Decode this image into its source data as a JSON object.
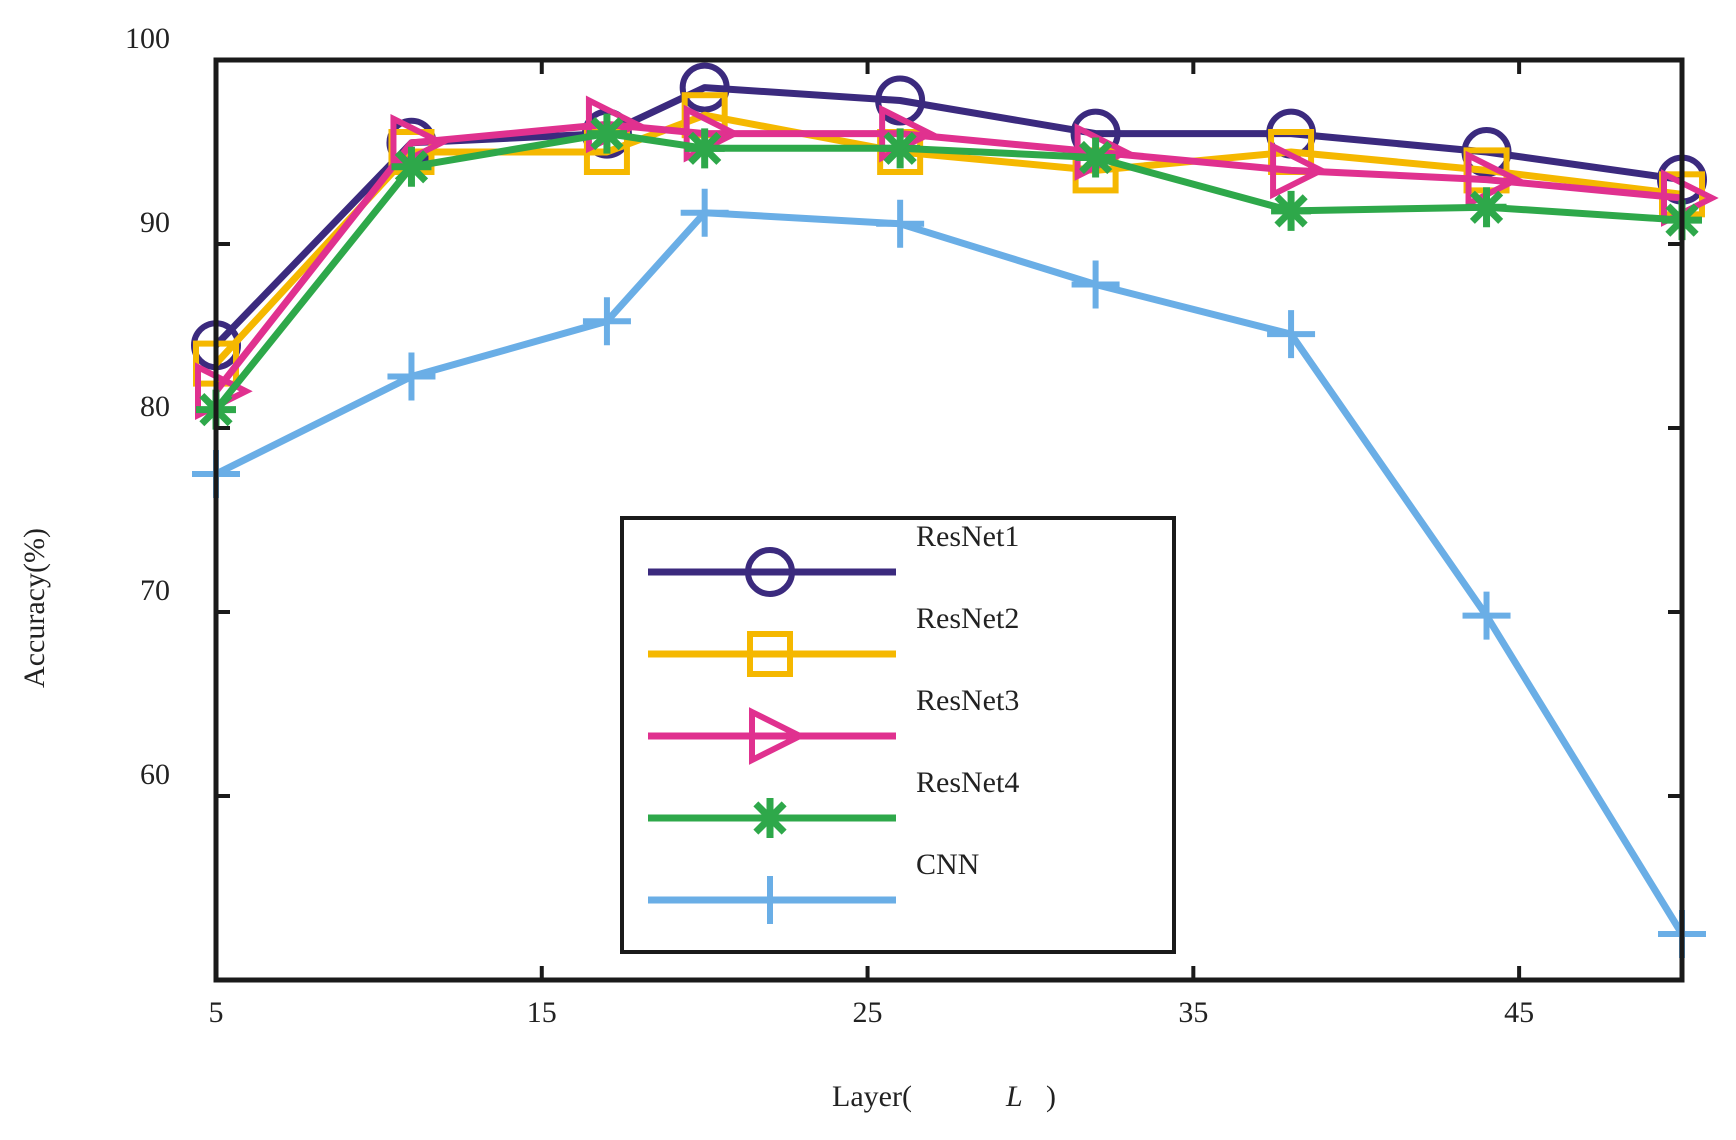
{
  "chart_data": {
    "type": "line",
    "title": "",
    "xlabel": "Layer(",
    "xlabel_var": "L",
    "xlabel_close": ")",
    "ylabel": "Accuracy(%)",
    "xlim": [
      5,
      50
    ],
    "ylim": [
      50,
      100
    ],
    "xticks": [
      5,
      15,
      25,
      35,
      45
    ],
    "yticks": [
      60,
      70,
      80,
      90,
      100
    ],
    "x": [
      5,
      11,
      17,
      20,
      26,
      32,
      38,
      44,
      50
    ],
    "series": [
      {
        "name": "ResNet1",
        "color": "#3b2a7e",
        "marker": "circle",
        "values": [
          84.5,
          95.5,
          96.0,
          98.5,
          97.8,
          96.0,
          96.0,
          95.0,
          93.5
        ]
      },
      {
        "name": "ResNet2",
        "color": "#f5b800",
        "marker": "square",
        "values": [
          83.5,
          95.0,
          95.0,
          97.0,
          95.0,
          94.0,
          95.0,
          94.0,
          92.7
        ]
      },
      {
        "name": "ResNet3",
        "color": "#e0318f",
        "marker": "triangle",
        "values": [
          82.0,
          95.5,
          96.5,
          96.0,
          96.0,
          95.0,
          94.0,
          93.5,
          92.5
        ]
      },
      {
        "name": "ResNet4",
        "color": "#2ea84a",
        "marker": "star",
        "values": [
          81.0,
          94.2,
          96.0,
          95.2,
          95.2,
          94.7,
          91.8,
          92.0,
          91.3
        ]
      },
      {
        "name": "CNN",
        "color": "#6aaee6",
        "marker": "plus",
        "values": [
          77.5,
          82.8,
          85.8,
          91.7,
          91.1,
          87.8,
          85.1,
          69.8,
          52.5
        ]
      }
    ],
    "legend_position": "center",
    "grid": false
  }
}
